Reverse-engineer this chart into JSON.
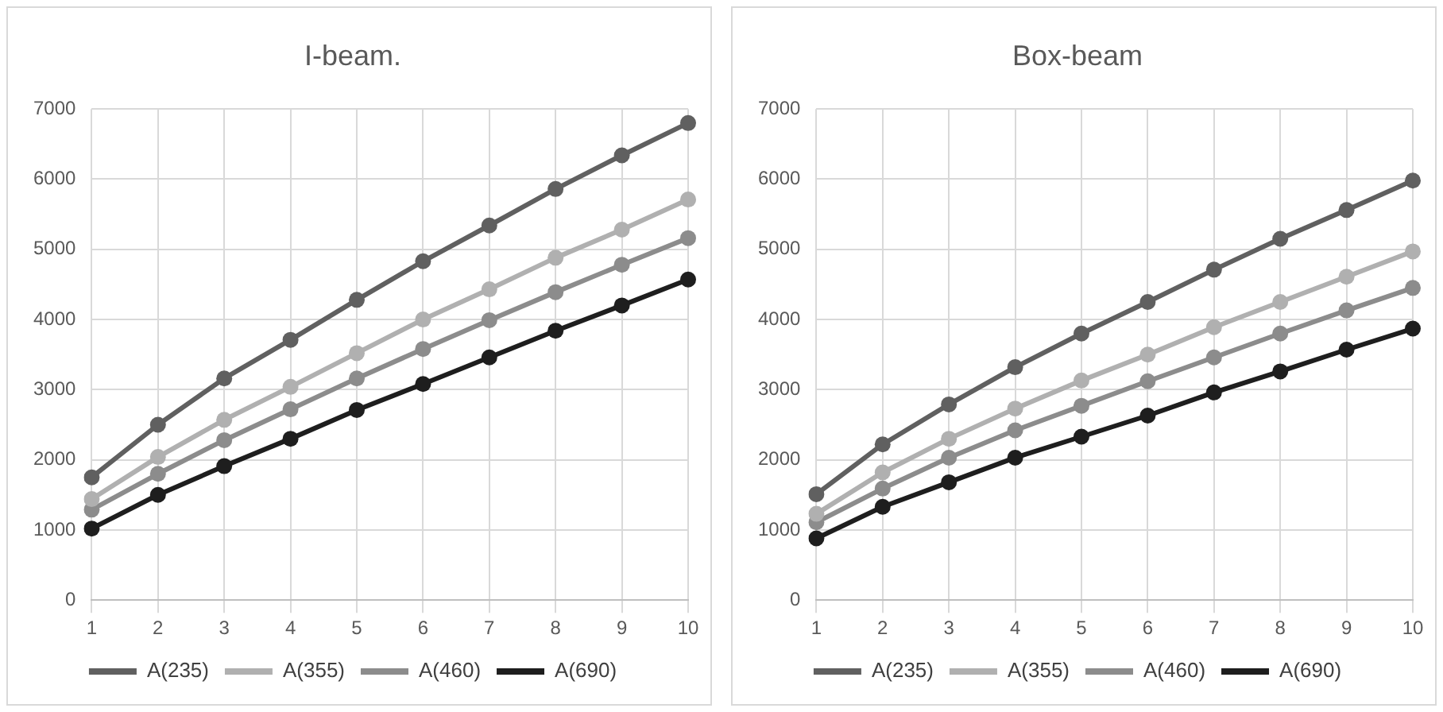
{
  "chart_data": [
    {
      "type": "line",
      "title": "I-beam.",
      "categories": [
        "1",
        "2",
        "3",
        "4",
        "5",
        "6",
        "7",
        "8",
        "9",
        "10"
      ],
      "ylim": [
        0,
        7000
      ],
      "yticks": [
        0,
        1000,
        2000,
        3000,
        4000,
        5000,
        6000,
        7000
      ],
      "grid": true,
      "legend": "bottom",
      "marker": "circle",
      "line_style": "solid",
      "series": [
        {
          "name": "A(235)",
          "color": "#606060",
          "values": [
            1750,
            2500,
            3160,
            3710,
            4280,
            4830,
            5340,
            5860,
            6340,
            6800
          ]
        },
        {
          "name": "A(355)",
          "color": "#b0b0b0",
          "values": [
            1440,
            2040,
            2570,
            3040,
            3520,
            4000,
            4430,
            4880,
            5280,
            5710
          ]
        },
        {
          "name": "A(460)",
          "color": "#8c8c8c",
          "values": [
            1290,
            1800,
            2280,
            2720,
            3160,
            3580,
            3990,
            4390,
            4780,
            5160
          ]
        },
        {
          "name": "A(690)",
          "color": "#1e1e1e",
          "values": [
            1020,
            1500,
            1910,
            2300,
            2710,
            3080,
            3460,
            3840,
            4200,
            4570
          ]
        }
      ]
    },
    {
      "type": "line",
      "title": "Box-beam",
      "categories": [
        "1",
        "2",
        "3",
        "4",
        "5",
        "6",
        "7",
        "8",
        "9",
        "10"
      ],
      "ylim": [
        0,
        7000
      ],
      "yticks": [
        0,
        1000,
        2000,
        3000,
        4000,
        5000,
        6000,
        7000
      ],
      "grid": true,
      "legend": "bottom",
      "marker": "circle",
      "line_style": "solid",
      "series": [
        {
          "name": "A(235)",
          "color": "#606060",
          "values": [
            1510,
            2220,
            2790,
            3320,
            3800,
            4250,
            4710,
            5150,
            5560,
            5980
          ]
        },
        {
          "name": "A(355)",
          "color": "#b0b0b0",
          "values": [
            1230,
            1820,
            2300,
            2730,
            3130,
            3500,
            3890,
            4250,
            4610,
            4970
          ]
        },
        {
          "name": "A(460)",
          "color": "#8c8c8c",
          "values": [
            1110,
            1590,
            2030,
            2420,
            2770,
            3120,
            3460,
            3800,
            4130,
            4450
          ]
        },
        {
          "name": "A(690)",
          "color": "#1e1e1e",
          "values": [
            880,
            1330,
            1680,
            2030,
            2330,
            2630,
            2960,
            3260,
            3570,
            3870
          ]
        }
      ]
    }
  ]
}
